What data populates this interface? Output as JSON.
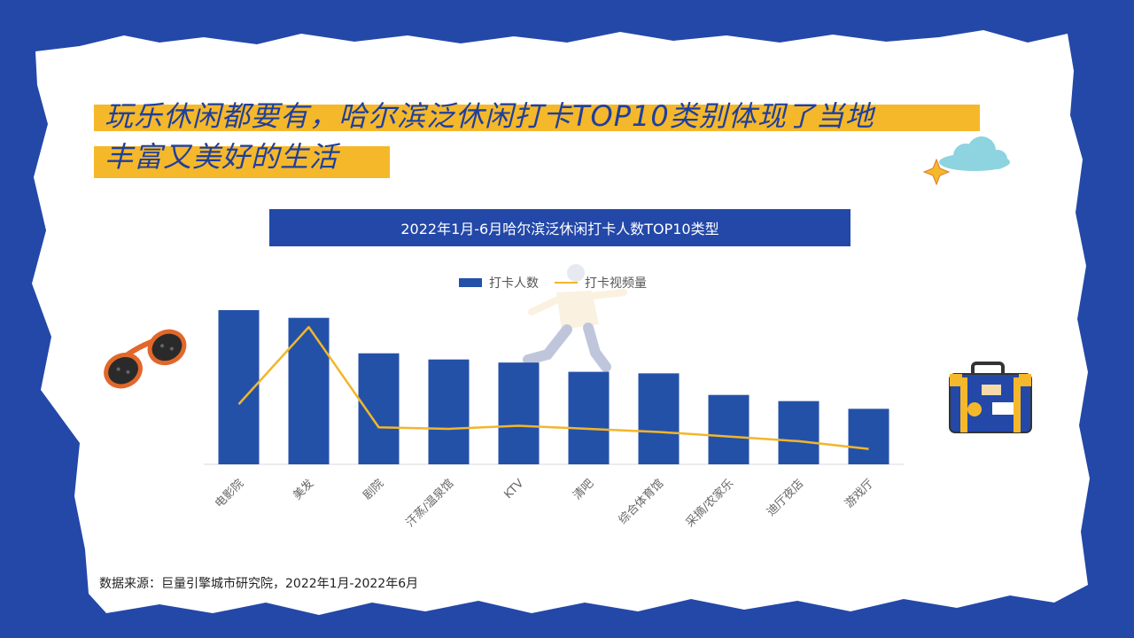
{
  "title": {
    "line1": "玩乐休闲都要有，哈尔滨泛休闲打卡TOP10类别体现了当地",
    "line2": "丰富又美好的生活"
  },
  "chart_banner": "2022年1月-6月哈尔滨泛休闲打卡人数TOP10类型",
  "legend": {
    "bar": "打卡人数",
    "line": "打卡视频量"
  },
  "source": "数据来源：巨量引擎城市研究院，2022年1月-2022年6月",
  "colors": {
    "bar": "#2451a8",
    "line": "#f2b62b",
    "title_highlight": "#f5b82a",
    "frame": "#2348a8"
  },
  "icons": [
    "sunglasses-icon",
    "runner-illustration",
    "cloud-icon",
    "sparkle-icon",
    "suitcase-icon"
  ],
  "chart_data": {
    "type": "bar",
    "categories": [
      "电影院",
      "美发",
      "剧院",
      "汗蒸/温泉馆",
      "KTV",
      "清吧",
      "综合体育馆",
      "采摘/农家乐",
      "迪厅夜店",
      "游戏厅"
    ],
    "series": [
      {
        "name": "打卡人数",
        "type": "bar",
        "values": [
          100,
          95,
          72,
          68,
          66,
          60,
          59,
          45,
          41,
          36
        ]
      },
      {
        "name": "打卡视频量",
        "type": "line",
        "values": [
          39,
          89,
          24,
          23,
          25,
          23,
          21,
          18,
          15,
          10
        ]
      }
    ],
    "ylim": [
      0,
      100
    ],
    "grid": false,
    "legend_position": "top-center"
  }
}
